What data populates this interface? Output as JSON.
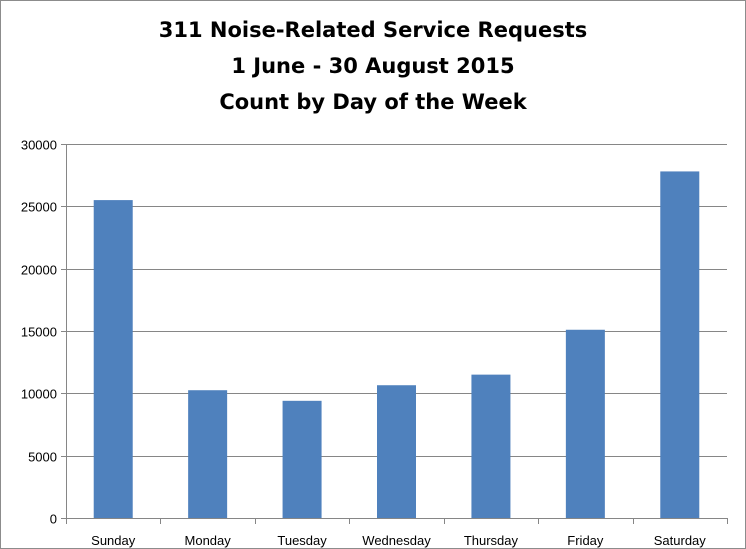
{
  "chart_data": {
    "type": "bar",
    "title_lines": [
      "311 Noise-Related Service Requests",
      "1 June - 30 August 2015",
      "Count by Day of the Week"
    ],
    "categories": [
      "Sunday",
      "Monday",
      "Tuesday",
      "Wednesday",
      "Thursday",
      "Friday",
      "Saturday"
    ],
    "values": [
      25500,
      10250,
      9400,
      10650,
      11500,
      15100,
      27800
    ],
    "ylim": [
      0,
      30000
    ],
    "yticks": [
      "0",
      "5000",
      "10000",
      "15000",
      "20000",
      "25000",
      "30000"
    ],
    "grid": true,
    "legend": "none",
    "bar_color": "#4f81bd",
    "grid_color": "#868686",
    "axis_color": "#868686"
  }
}
